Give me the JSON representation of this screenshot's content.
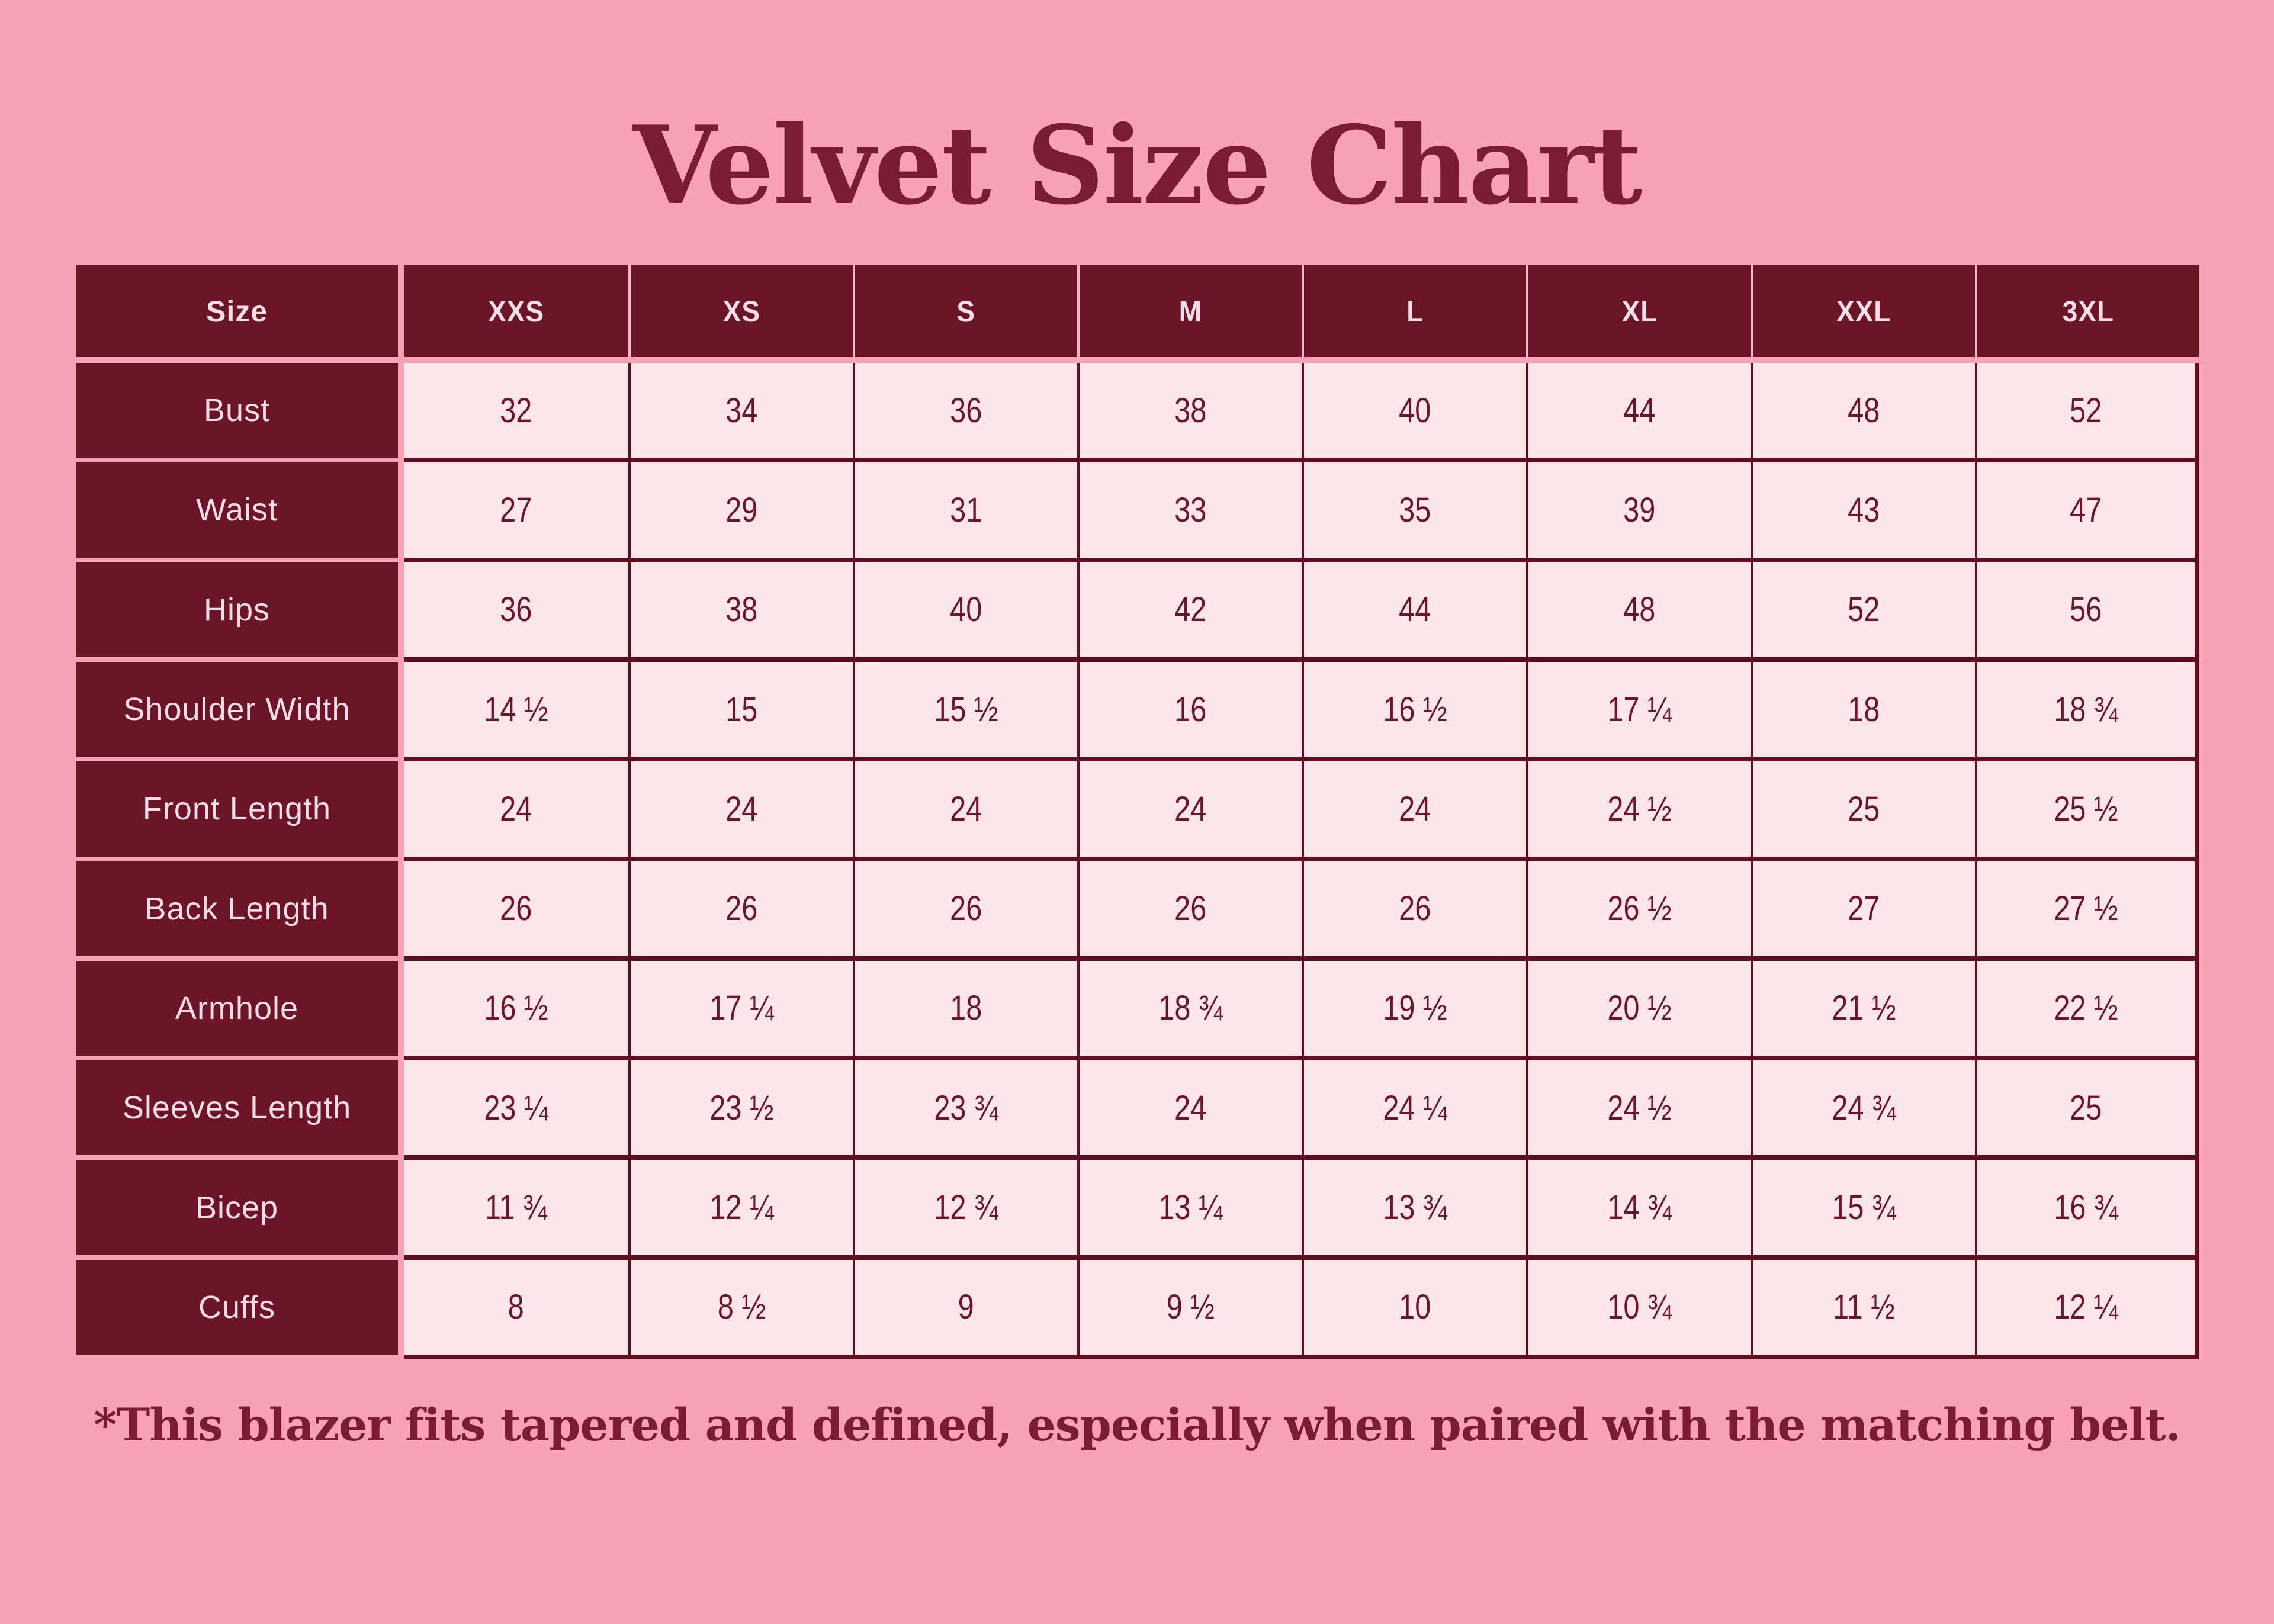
{
  "page": {
    "title": "Velvet Size Chart",
    "footnote": "*This blazer fits tapered and defined, especially when paired with the matching belt."
  },
  "colors": {
    "background_pink": "#F9A1B6",
    "maroon_cell": "#6C1528",
    "border_maroon": "#5D0F20",
    "data_cell_pink": "#FCE6EC",
    "light_text": "#FBDFE8",
    "title_text": "#7B1C36"
  },
  "table": {
    "header": [
      "Size",
      "XXS",
      "XS",
      "S",
      "M",
      "L",
      "XL",
      "XXL",
      "3XL"
    ],
    "rows": [
      {
        "label": "Bust",
        "values": [
          "32",
          "34",
          "36",
          "38",
          "40",
          "44",
          "48",
          "52"
        ]
      },
      {
        "label": "Waist",
        "values": [
          "27",
          "29",
          "31",
          "33",
          "35",
          "39",
          "43",
          "47"
        ]
      },
      {
        "label": "Hips",
        "values": [
          "36",
          "38",
          "40",
          "42",
          "44",
          "48",
          "52",
          "56"
        ]
      },
      {
        "label": "Shoulder Width",
        "values": [
          "14 ½",
          "15",
          "15 ½",
          "16",
          "16 ½",
          "17 ¼",
          "18",
          "18 ¾"
        ]
      },
      {
        "label": "Front Length",
        "values": [
          "24",
          "24",
          "24",
          "24",
          "24",
          "24 ½",
          "25",
          "25 ½"
        ]
      },
      {
        "label": "Back Length",
        "values": [
          "26",
          "26",
          "26",
          "26",
          "26",
          "26 ½",
          "27",
          "27 ½"
        ]
      },
      {
        "label": "Armhole",
        "values": [
          "16 ½",
          "17 ¼",
          "18",
          "18 ¾",
          "19 ½",
          "20 ½",
          "21 ½",
          "22 ½"
        ]
      },
      {
        "label": "Sleeves Length",
        "values": [
          "23 ¼",
          "23 ½",
          "23 ¾",
          "24",
          "24 ¼",
          "24 ½",
          "24 ¾",
          "25"
        ]
      },
      {
        "label": "Bicep",
        "values": [
          "11 ¾",
          "12 ¼",
          "12 ¾",
          "13 ¼",
          "13 ¾",
          "14 ¾",
          "15 ¾",
          "16 ¾"
        ]
      },
      {
        "label": "Cuffs",
        "values": [
          "8",
          "8 ½",
          "9",
          "9 ½",
          "10",
          "10 ¾",
          "11 ½",
          "12 ¼"
        ]
      }
    ]
  }
}
